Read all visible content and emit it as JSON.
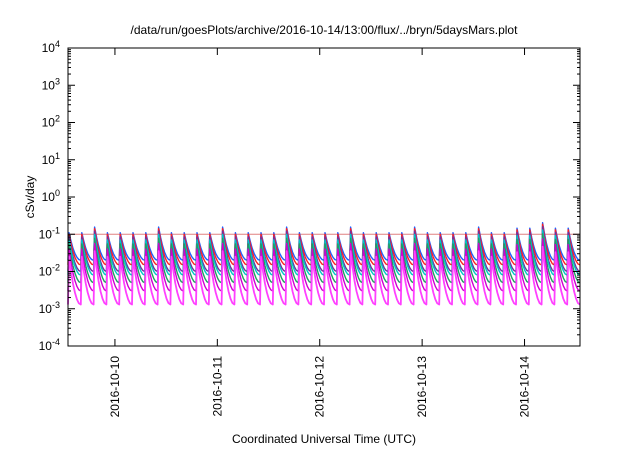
{
  "chart_data": {
    "type": "line",
    "title": "/data/run/goesPlots/archive/2016-10-14/13:00/flux/../bryn/5daysMars.plot",
    "xlabel": "Coordinated Universal Time (UTC)",
    "ylabel": "cSv/day",
    "yscale": "log",
    "ylim": [
      0.0001,
      10000
    ],
    "yticks": [
      {
        "value": 0.0001,
        "base": "10",
        "exp": "-4"
      },
      {
        "value": 0.001,
        "base": "10",
        "exp": "-3"
      },
      {
        "value": 0.01,
        "base": "10",
        "exp": "-2"
      },
      {
        "value": 0.1,
        "base": "10",
        "exp": "-1"
      },
      {
        "value": 1,
        "base": "10",
        "exp": "0"
      },
      {
        "value": 10,
        "base": "10",
        "exp": "1"
      },
      {
        "value": 100,
        "base": "10",
        "exp": "2"
      },
      {
        "value": 1000,
        "base": "10",
        "exp": "3"
      },
      {
        "value": 10000,
        "base": "10",
        "exp": "4"
      }
    ],
    "xlim": [
      "2016-10-09T13:00",
      "2016-10-14T13:00"
    ],
    "xticks": [
      "2016-10-10",
      "2016-10-11",
      "2016-10-12",
      "2016-10-13",
      "2016-10-14"
    ],
    "reference_line": {
      "value": 0.1,
      "color": "#e08080"
    },
    "grid": false,
    "legend": "none",
    "pattern": {
      "cycles_per_day": 8,
      "cycles_total": 40
    },
    "series": [
      {
        "color": "#2060ff",
        "peak": 0.11,
        "trough": 0.02
      },
      {
        "color": "#ff2020",
        "peak": 0.1,
        "trough": 0.015
      },
      {
        "color": "#7030a0",
        "peak": 0.085,
        "trough": 0.01
      },
      {
        "color": "#00c8c8",
        "peak": 0.07,
        "trough": 0.008
      },
      {
        "color": "#20a060",
        "peak": 0.055,
        "trough": 0.005
      },
      {
        "color": "#d000d0",
        "peak": 0.04,
        "trough": 0.003
      },
      {
        "color": "#ff40ff",
        "peak": 0.025,
        "trough": 0.0013
      }
    ]
  }
}
